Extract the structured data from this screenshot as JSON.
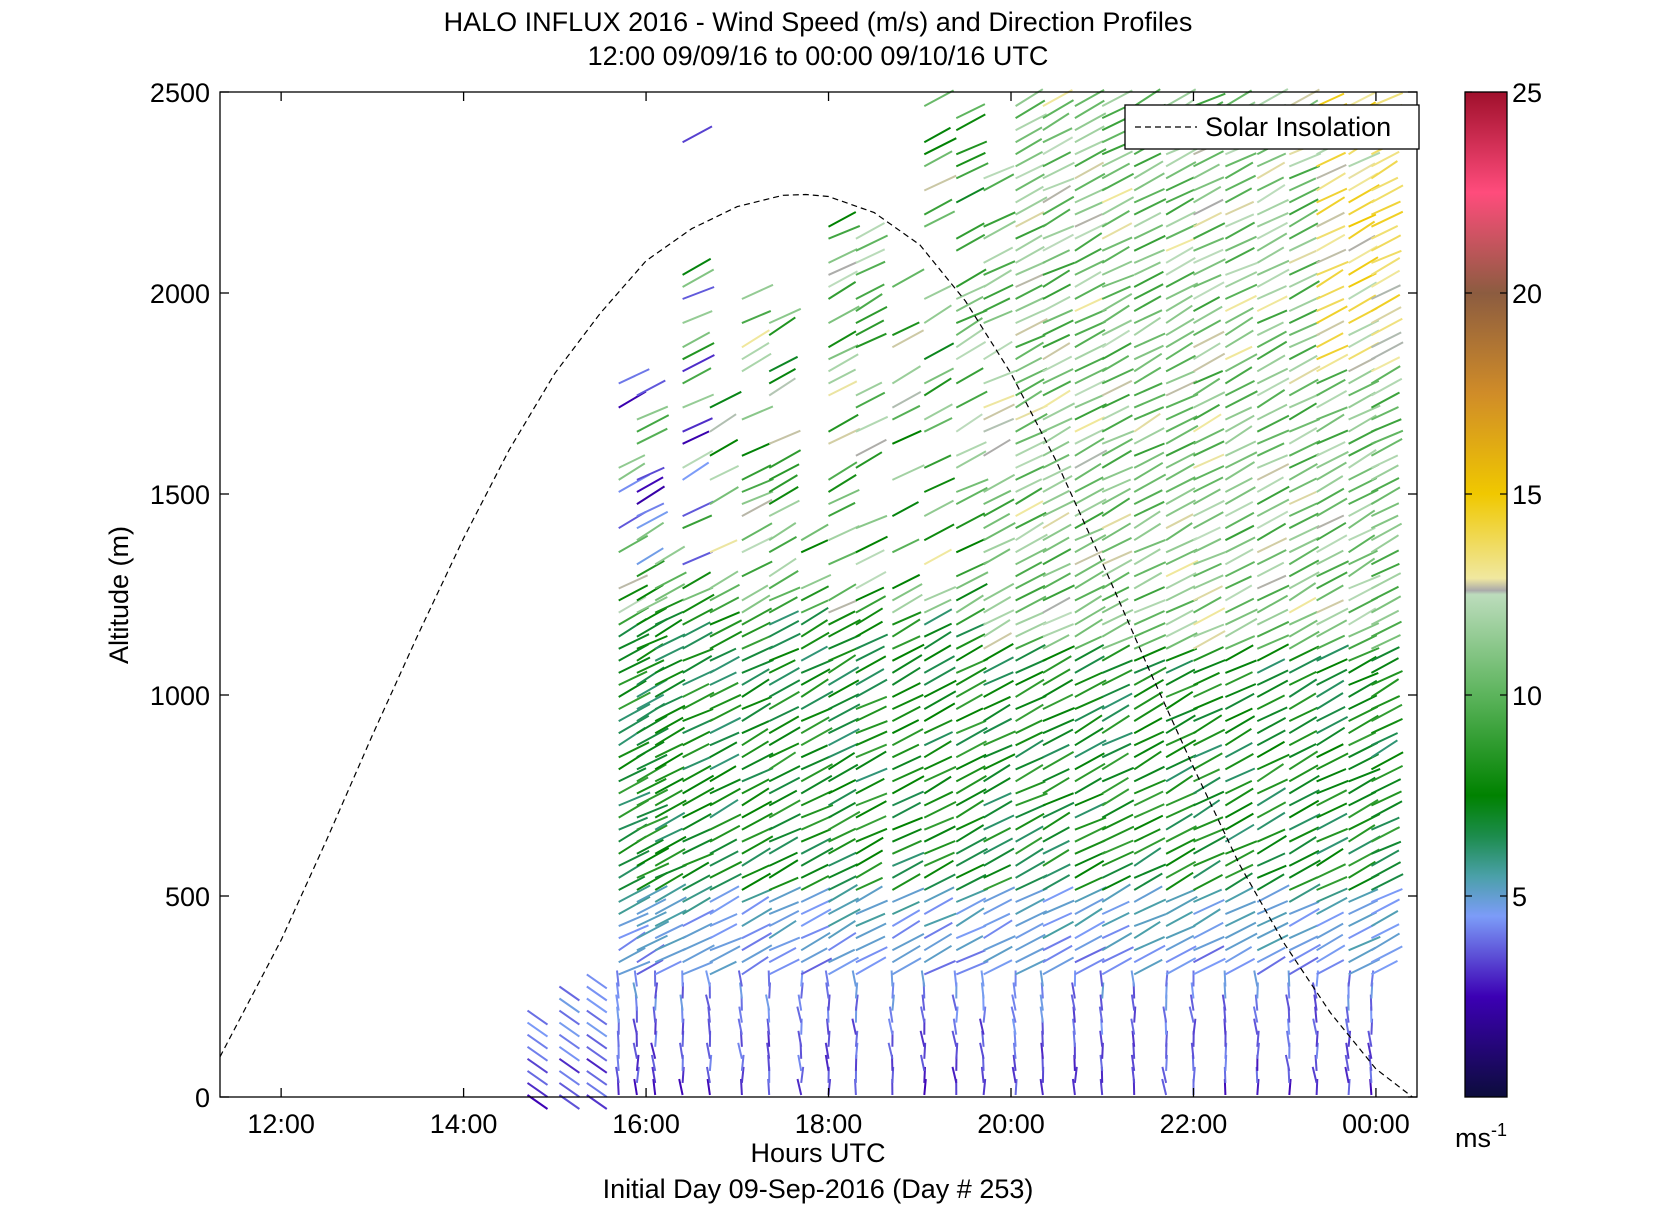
{
  "chart_data": {
    "type": "wind-barb-profile",
    "title": "HALO INFLUX 2016 - Wind Speed (m/s) and Direction Profiles",
    "subtitle": "12:00 09/09/16 to 00:00 09/10/16  UTC",
    "xlabel": "Hours UTC",
    "x_caption": "Initial Day 09-Sep-2016 (Day # 253)",
    "ylabel": "Altitude (m)",
    "xlim": [
      11.33,
      24.45
    ],
    "ylim": [
      0,
      2500
    ],
    "x_ticks": [
      12,
      14,
      16,
      18,
      20,
      22,
      24
    ],
    "x_tick_labels": [
      "12:00",
      "14:00",
      "16:00",
      "18:00",
      "20:00",
      "22:00",
      "00:00"
    ],
    "y_ticks": [
      0,
      500,
      1000,
      1500,
      2000,
      2500
    ],
    "y_tick_labels": [
      "0",
      "500",
      "1000",
      "1500",
      "2000",
      "2500"
    ],
    "legend": {
      "entries": [
        "Solar Insolation"
      ],
      "placement": "top-right"
    },
    "colorbar": {
      "range": [
        0,
        25
      ],
      "ticks": [
        5,
        10,
        15,
        20,
        25
      ],
      "tick_labels": [
        "5",
        "10",
        "15",
        "20",
        "25"
      ],
      "unit_label": "ms",
      "unit_exponent": "-1",
      "stops": [
        {
          "v": 0,
          "c": "#0c0c3c"
        },
        {
          "v": 2.5,
          "c": "#3c00b4"
        },
        {
          "v": 4.5,
          "c": "#7c9cf8"
        },
        {
          "v": 5.5,
          "c": "#4aa0a8"
        },
        {
          "v": 6.5,
          "c": "#1c8c4c"
        },
        {
          "v": 7.5,
          "c": "#008200"
        },
        {
          "v": 10,
          "c": "#5cb45c"
        },
        {
          "v": 12.5,
          "c": "#bcdcbc"
        },
        {
          "v": 12.6,
          "c": "#aaaaaa"
        },
        {
          "v": 12.9,
          "c": "#f0e8a0"
        },
        {
          "v": 15,
          "c": "#f0c800"
        },
        {
          "v": 17.5,
          "c": "#d08c28"
        },
        {
          "v": 20,
          "c": "#8c5c40"
        },
        {
          "v": 22.5,
          "c": "#ff4c7c"
        },
        {
          "v": 25,
          "c": "#a0102c"
        }
      ]
    },
    "solar_insolation": {
      "style": "dashed",
      "color": "#000000",
      "x": [
        11.33,
        12,
        12.5,
        13,
        13.5,
        14,
        14.5,
        15,
        15.5,
        16,
        16.5,
        17,
        17.5,
        17.75,
        18,
        18.5,
        19,
        19.5,
        20,
        20.5,
        21,
        21.5,
        22,
        22.5,
        23,
        23.5,
        24,
        24.4
      ],
      "y": [
        100,
        390,
        640,
        900,
        1150,
        1390,
        1610,
        1800,
        1950,
        2080,
        2160,
        2215,
        2243,
        2245,
        2240,
        2200,
        2120,
        1980,
        1800,
        1580,
        1330,
        1070,
        820,
        580,
        380,
        210,
        70,
        0
      ]
    },
    "profile_times": [
      14.7,
      15.05,
      15.35,
      15.7,
      15.9,
      16.1,
      16.4,
      16.7,
      17.05,
      17.35,
      17.7,
      18.0,
      18.3,
      18.7,
      19.05,
      19.4,
      19.7,
      20.05,
      20.35,
      20.7,
      21.0,
      21.35,
      21.7,
      22.0,
      22.35,
      22.7,
      23.05,
      23.35,
      23.7,
      23.95
    ],
    "altitude_step": 30
  }
}
